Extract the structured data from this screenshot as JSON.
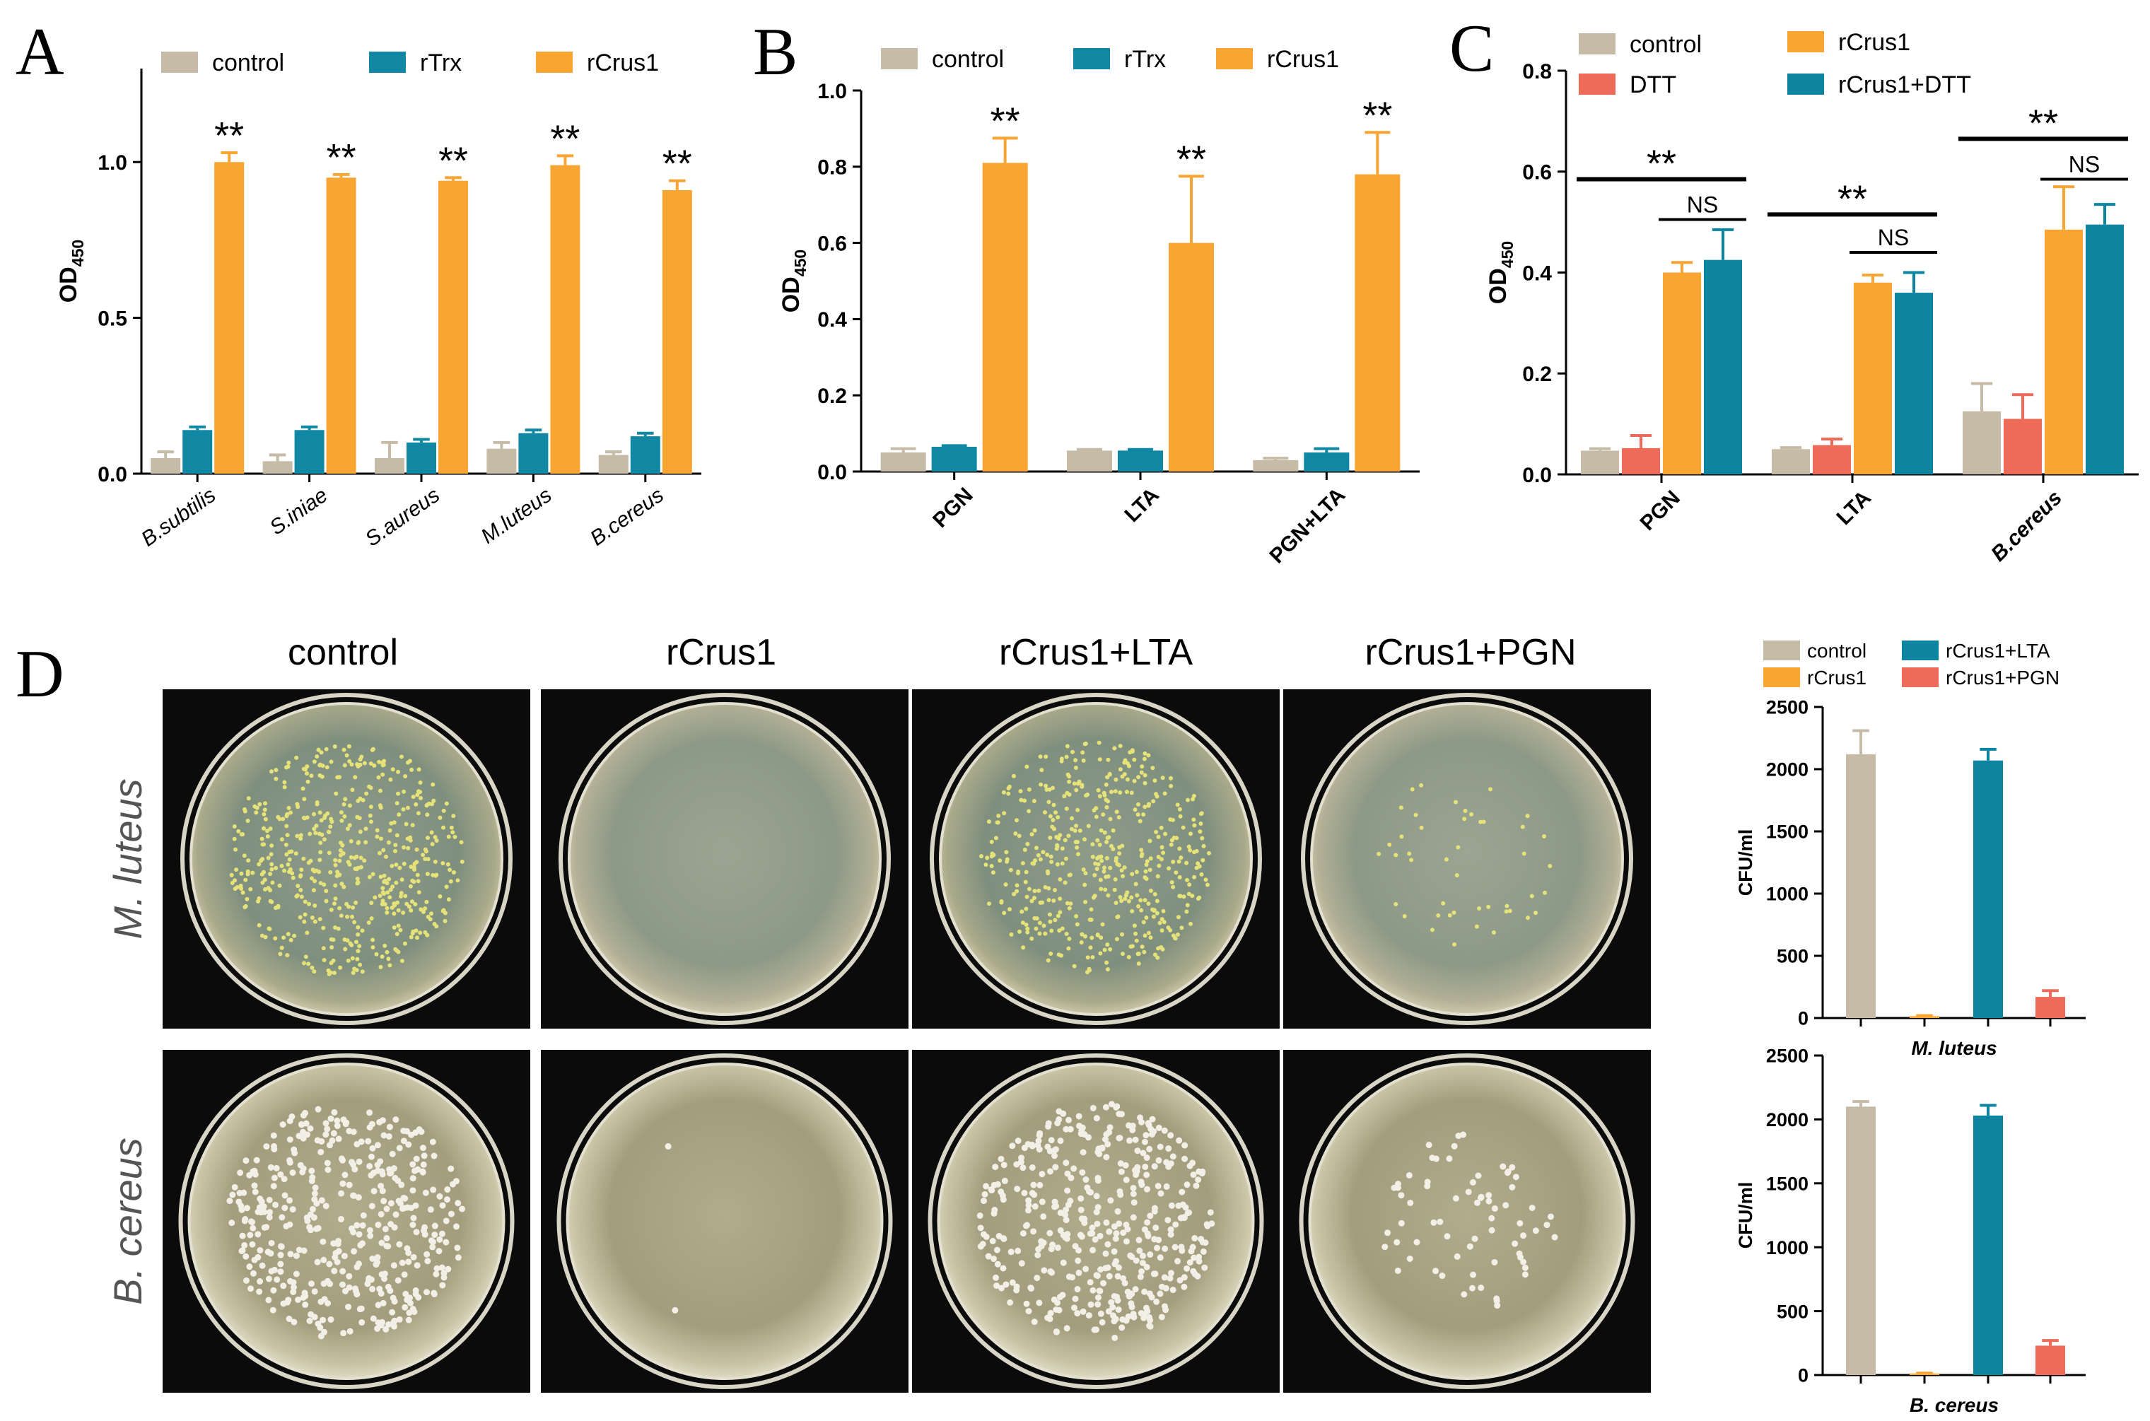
{
  "colors": {
    "control": "#c5bba6",
    "rTrx": "#1088a3",
    "rCrus1": "#f9a534",
    "DTT": "#ee6b5a",
    "rCrus1+DTT": "#0d84a0",
    "rCrus1+LTA": "#0d84a0",
    "rCrus1+PGN": "#ee6b5a"
  },
  "significance": {
    "double": "**",
    "ns": "NS"
  },
  "chart_data": [
    {
      "panel": "A",
      "type": "bar",
      "categories": [
        "B.subtilis",
        "S.iniae",
        "S.aureus",
        "M.luteus",
        "B.cereus"
      ],
      "series": [
        {
          "name": "control",
          "values": [
            0.05,
            0.04,
            0.05,
            0.08,
            0.06
          ],
          "errors": [
            0.02,
            0.02,
            0.05,
            0.02,
            0.01
          ]
        },
        {
          "name": "rTrx",
          "values": [
            0.14,
            0.14,
            0.1,
            0.13,
            0.12
          ],
          "errors": [
            0.01,
            0.01,
            0.01,
            0.01,
            0.01
          ]
        },
        {
          "name": "rCrus1",
          "values": [
            1.0,
            0.95,
            0.94,
            0.99,
            0.91
          ],
          "errors": [
            0.03,
            0.01,
            0.01,
            0.03,
            0.03
          ]
        }
      ],
      "significance": [
        "**",
        "**",
        "**",
        "**",
        "**"
      ],
      "ylabel": "OD",
      "ylabel_sub": "450",
      "ylim": [
        0,
        1.3
      ],
      "yticks": [
        "0.0",
        "0.5",
        "1.0"
      ],
      "ytick_values": [
        0,
        0.5,
        1.0
      ],
      "legend": "top",
      "grid": false
    },
    {
      "panel": "B",
      "type": "bar",
      "categories": [
        "PGN",
        "LTA",
        "PGN+LTA"
      ],
      "series": [
        {
          "name": "control",
          "values": [
            0.05,
            0.055,
            0.03
          ],
          "errors": [
            0.01,
            0.003,
            0.005
          ]
        },
        {
          "name": "rTrx",
          "values": [
            0.065,
            0.055,
            0.05
          ],
          "errors": [
            0.003,
            0.003,
            0.01
          ]
        },
        {
          "name": "rCrus1",
          "values": [
            0.81,
            0.6,
            0.78
          ],
          "errors": [
            0.065,
            0.175,
            0.11
          ]
        }
      ],
      "significance": [
        "**",
        "**",
        "**"
      ],
      "ylabel": "OD",
      "ylabel_sub": "450",
      "ylim": [
        0,
        1.0
      ],
      "yticks": [
        "0.0",
        "0.2",
        "0.4",
        "0.6",
        "0.8",
        "1.0"
      ],
      "ytick_values": [
        0,
        0.2,
        0.4,
        0.6,
        0.8,
        1.0
      ],
      "legend": "top",
      "grid": false
    },
    {
      "panel": "C",
      "type": "bar",
      "categories": [
        "PGN",
        "LTA",
        "B.cereus"
      ],
      "series": [
        {
          "name": "control",
          "values": [
            0.047,
            0.05,
            0.125
          ],
          "errors": [
            0.004,
            0.003,
            0.055
          ]
        },
        {
          "name": "DTT",
          "values": [
            0.052,
            0.058,
            0.11
          ],
          "errors": [
            0.025,
            0.012,
            0.048
          ]
        },
        {
          "name": "rCrus1",
          "values": [
            0.4,
            0.38,
            0.485
          ],
          "errors": [
            0.02,
            0.015,
            0.085
          ]
        },
        {
          "name": "rCrus1+DTT",
          "values": [
            0.425,
            0.36,
            0.495
          ],
          "errors": [
            0.06,
            0.04,
            0.04
          ]
        }
      ],
      "brackets": [
        {
          "category": 0,
          "from": 0,
          "to": 3,
          "label": "**",
          "y": 0.585
        },
        {
          "category": 0,
          "from": 2,
          "to": 3,
          "label": "NS",
          "y": 0.505
        },
        {
          "category": 1,
          "from": 0,
          "to": 3,
          "label": "**",
          "y": 0.515
        },
        {
          "category": 1,
          "from": 2,
          "to": 3,
          "label": "NS",
          "y": 0.44
        },
        {
          "category": 2,
          "from": 0,
          "to": 3,
          "label": "**",
          "y": 0.665
        },
        {
          "category": 2,
          "from": 2,
          "to": 3,
          "label": "NS",
          "y": 0.585
        }
      ],
      "ylabel": "OD",
      "ylabel_sub": "450",
      "ylim": [
        0,
        0.8
      ],
      "yticks": [
        "0.0",
        "0.2",
        "0.4",
        "0.6",
        "0.8"
      ],
      "ytick_values": [
        0,
        0.2,
        0.4,
        0.6,
        0.8
      ],
      "legend": "top",
      "grid": false
    },
    {
      "panel": "D-top",
      "type": "bar",
      "categories": [
        "control",
        "rCrus1",
        "rCrus1+LTA",
        "rCrus1+PGN"
      ],
      "values": [
        2120,
        15,
        2070,
        170
      ],
      "errors": [
        190,
        5,
        90,
        50
      ],
      "xlabel": "M. luteus",
      "ylabel": "CFU/ml",
      "ylim": [
        0,
        2500
      ],
      "yticks": [
        "0",
        "500",
        "1000",
        "1500",
        "2000",
        "2500"
      ],
      "ytick_values": [
        0,
        500,
        1000,
        1500,
        2000,
        2500
      ],
      "legend": "top",
      "grid": false
    },
    {
      "panel": "D-bottom",
      "type": "bar",
      "categories": [
        "control",
        "rCrus1",
        "rCrus1+LTA",
        "rCrus1+PGN"
      ],
      "values": [
        2100,
        12,
        2030,
        230
      ],
      "errors": [
        40,
        3,
        80,
        40
      ],
      "xlabel": "B. cereus",
      "ylabel": "CFU/ml",
      "ylim": [
        0,
        2500
      ],
      "yticks": [
        "0",
        "500",
        "1000",
        "1500",
        "2000",
        "2500"
      ],
      "ytick_values": [
        0,
        500,
        1000,
        1500,
        2000,
        2500
      ],
      "legend": "top",
      "grid": false
    }
  ],
  "panelD": {
    "letter": "D",
    "columns": [
      "control",
      "rCrus1",
      "rCrus1+LTA",
      "rCrus1+PGN"
    ],
    "rows": [
      "M. luteus",
      "B. cereus"
    ],
    "legend": [
      "control",
      "rCrus1+LTA",
      "rCrus1",
      "rCrus1+PGN"
    ]
  }
}
